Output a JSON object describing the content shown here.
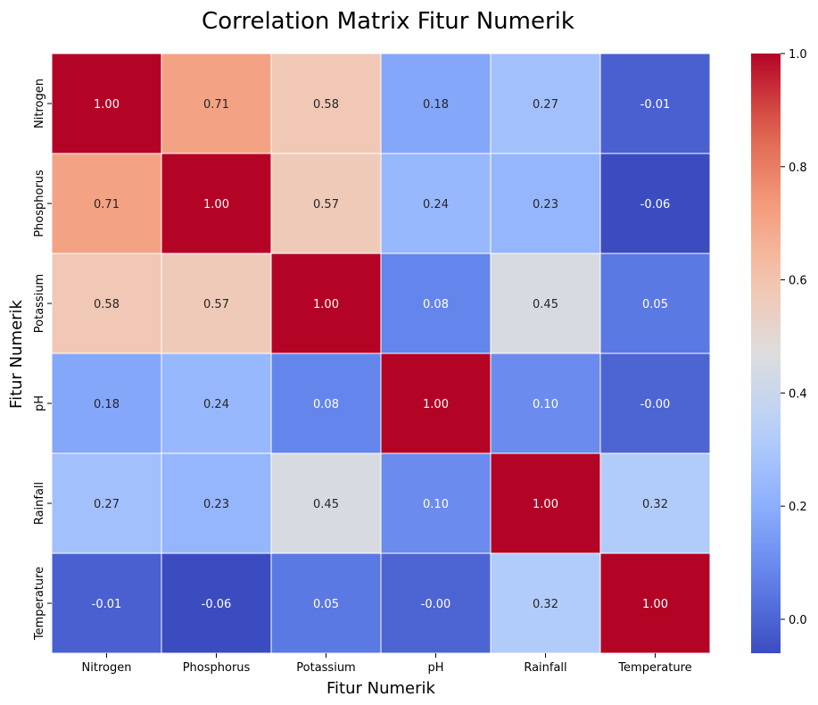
{
  "chart_data": {
    "type": "heatmap",
    "title": "Correlation Matrix Fitur Numerik",
    "xlabel": "Fitur Numerik",
    "ylabel": "Fitur Numerik",
    "x_categories": [
      "Nitrogen",
      "Phosphorus",
      "Potassium",
      "pH",
      "Rainfall",
      "Temperature"
    ],
    "y_categories": [
      "Nitrogen",
      "Phosphorus",
      "Potassium",
      "pH",
      "Rainfall",
      "Temperature"
    ],
    "values": [
      [
        1.0,
        0.71,
        0.58,
        0.18,
        0.27,
        -0.01
      ],
      [
        0.71,
        1.0,
        0.57,
        0.24,
        0.23,
        -0.06
      ],
      [
        0.58,
        0.57,
        1.0,
        0.08,
        0.45,
        0.05
      ],
      [
        0.18,
        0.24,
        0.08,
        1.0,
        0.1,
        -0.0
      ],
      [
        0.27,
        0.23,
        0.45,
        0.1,
        1.0,
        0.32
      ],
      [
        -0.01,
        -0.06,
        0.05,
        -0.0,
        0.32,
        1.0
      ]
    ],
    "value_labels": [
      [
        "1.00",
        "0.71",
        "0.58",
        "0.18",
        "0.27",
        "-0.01"
      ],
      [
        "0.71",
        "1.00",
        "0.57",
        "0.24",
        "0.23",
        "-0.06"
      ],
      [
        "0.58",
        "0.57",
        "1.00",
        "0.08",
        "0.45",
        "0.05"
      ],
      [
        "0.18",
        "0.24",
        "0.08",
        "1.00",
        "0.10",
        "-0.00"
      ],
      [
        "0.27",
        "0.23",
        "0.45",
        "0.10",
        "1.00",
        "0.32"
      ],
      [
        "-0.01",
        "-0.06",
        "0.05",
        "-0.00",
        "0.32",
        "1.00"
      ]
    ],
    "colormap": "coolwarm",
    "colorbar": {
      "range": [
        -0.06,
        1.0
      ],
      "ticks": [
        0.0,
        0.2,
        0.4,
        0.6,
        0.8,
        1.0
      ],
      "tick_labels": [
        "0.0",
        "0.2",
        "0.4",
        "0.6",
        "0.8",
        "1.0"
      ]
    },
    "cell_border_color": "#ffffff",
    "annotation_colors": {
      "light_text": "#ffffff",
      "dark_text": "#262626"
    },
    "grid": false
  }
}
